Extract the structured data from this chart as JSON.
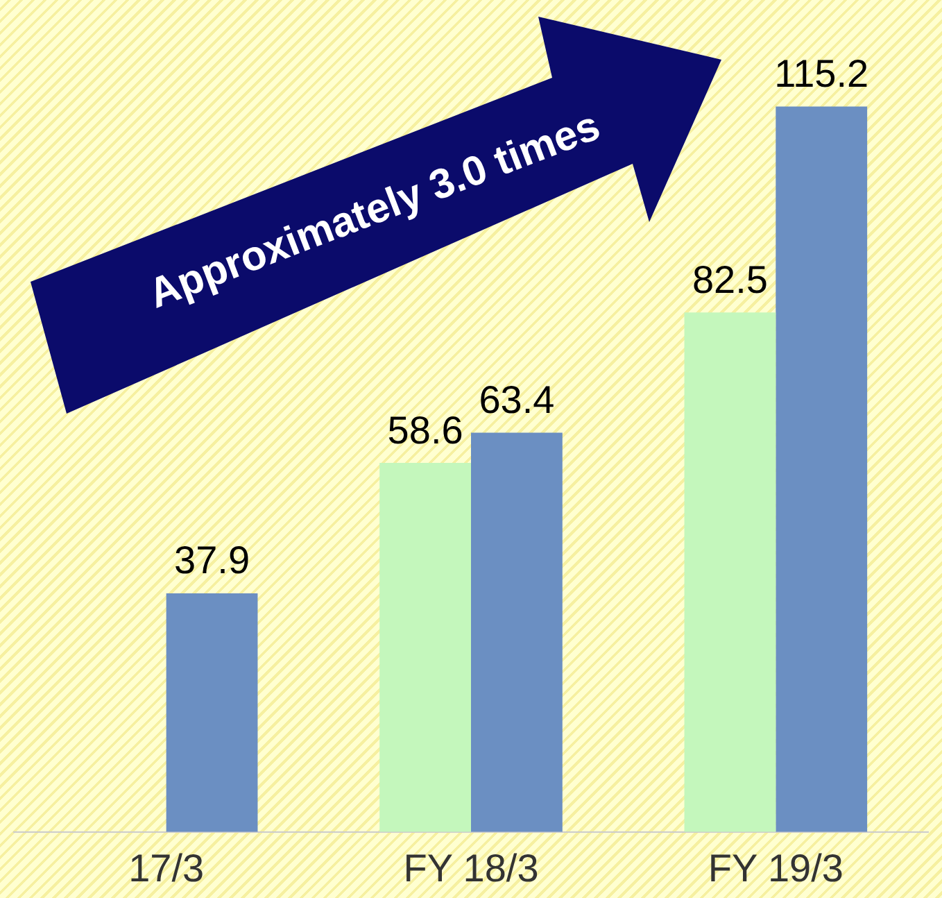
{
  "chart_data": {
    "type": "bar",
    "categories": [
      "17/3",
      "FY 18/3",
      "FY 19/3"
    ],
    "series": [
      {
        "color": "#c4f7bc",
        "values": [
          null,
          58.6,
          82.5
        ]
      },
      {
        "color": "#6b8fc2",
        "values": [
          37.9,
          63.4,
          115.2
        ]
      }
    ],
    "data_labels": true,
    "legend": false,
    "grid": false,
    "annotations": [
      "Approximately 3.0 times"
    ]
  }
}
